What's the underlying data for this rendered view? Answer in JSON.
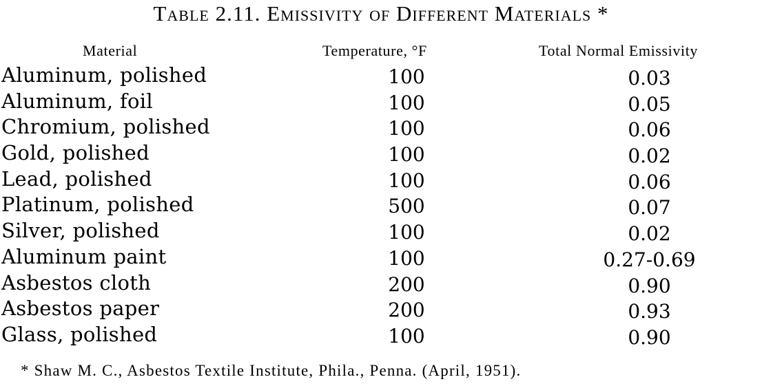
{
  "caption": "Table 2.11. Emissivity of Different Materials *",
  "headers": {
    "material": "Material",
    "temperature": "Temperature, °F",
    "emissivity": "Total Normal Emissivity"
  },
  "rows": [
    {
      "material": "Aluminum, polished",
      "temperature": "100",
      "emissivity": "0.03"
    },
    {
      "material": "Aluminum, foil",
      "temperature": "100",
      "emissivity": "0.05"
    },
    {
      "material": "Chromium, polished",
      "temperature": "100",
      "emissivity": "0.06"
    },
    {
      "material": "Gold, polished",
      "temperature": "100",
      "emissivity": "0.02"
    },
    {
      "material": "Lead, polished",
      "temperature": "100",
      "emissivity": "0.06"
    },
    {
      "material": "Platinum, polished",
      "temperature": "500",
      "emissivity": "0.07"
    },
    {
      "material": "Silver, polished",
      "temperature": "100",
      "emissivity": "0.02"
    },
    {
      "material": "Aluminum paint",
      "temperature": "100",
      "emissivity": "0.27-0.69"
    },
    {
      "material": "Asbestos cloth",
      "temperature": "200",
      "emissivity": "0.90"
    },
    {
      "material": "Asbestos paper",
      "temperature": "200",
      "emissivity": "0.93"
    },
    {
      "material": "Glass, polished",
      "temperature": "100",
      "emissivity": "0.90"
    }
  ],
  "footnote": "* Shaw M. C., Asbestos Textile Institute, Phila., Penna. (April, 1951)."
}
